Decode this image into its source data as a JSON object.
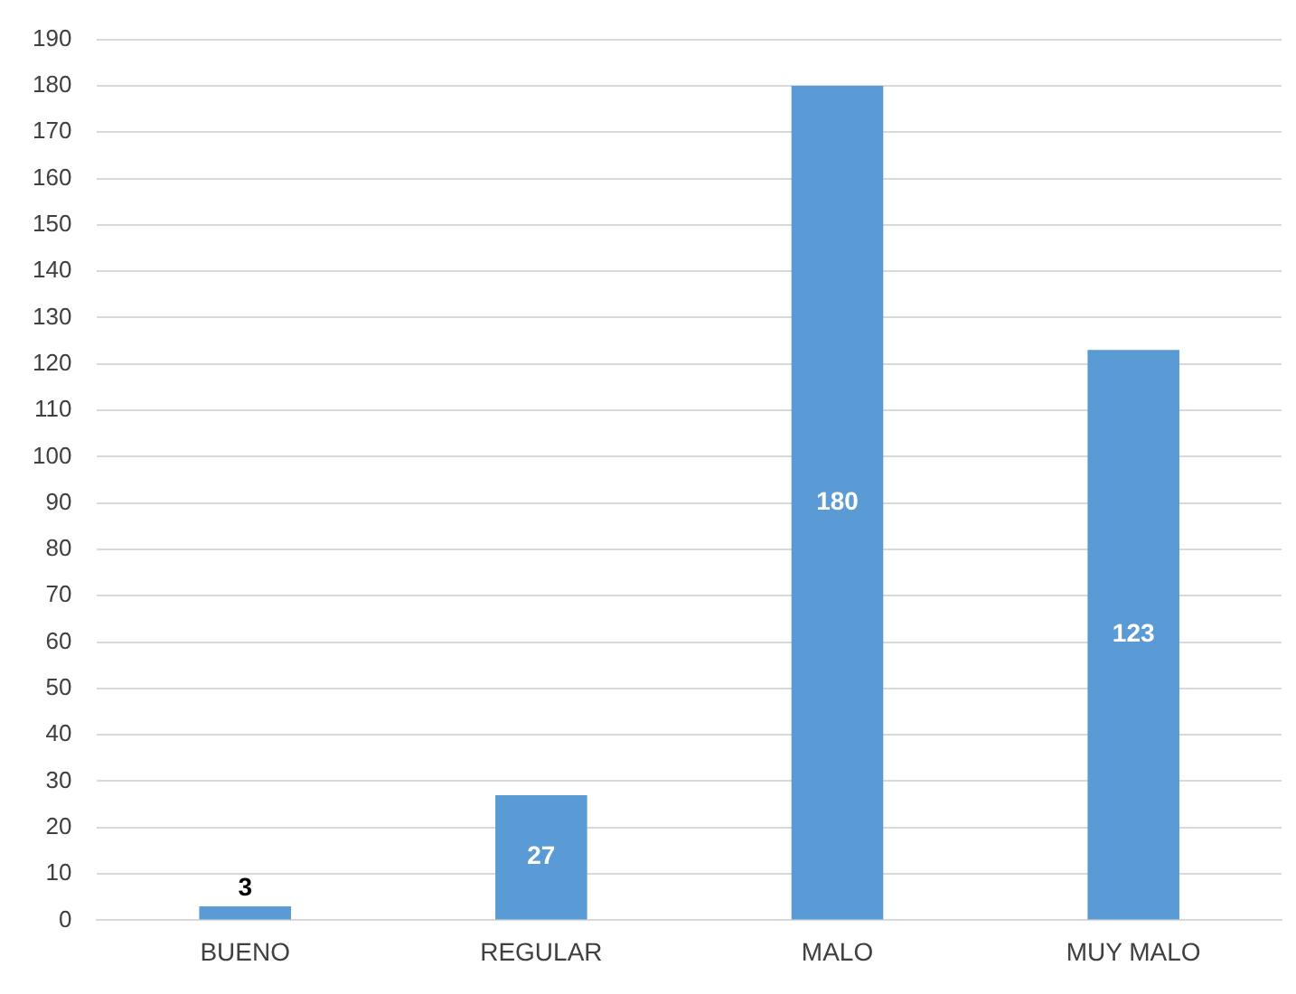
{
  "chart_data": {
    "type": "bar",
    "categories": [
      "BUENO",
      "REGULAR",
      "MALO",
      "MUY MALO"
    ],
    "values": [
      3,
      27,
      180,
      123
    ],
    "color": "#5b9bd5",
    "ylim": [
      0,
      190
    ],
    "yticks": [
      0,
      10,
      20,
      30,
      40,
      50,
      60,
      70,
      80,
      90,
      100,
      110,
      120,
      130,
      140,
      150,
      160,
      170,
      180,
      190
    ],
    "grid": "y",
    "legend": false,
    "data_labels": true
  }
}
